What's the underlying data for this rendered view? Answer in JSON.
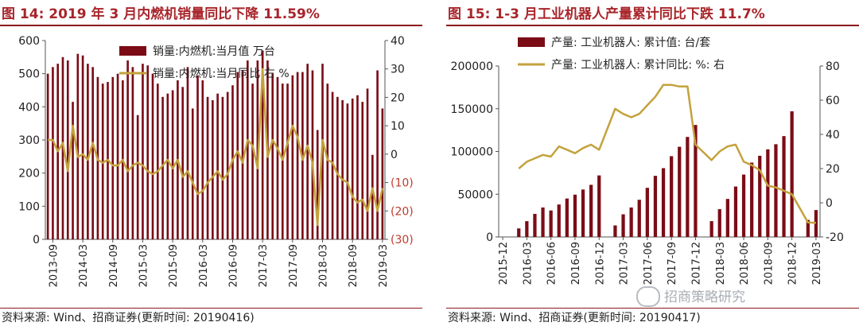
{
  "colors": {
    "bar": "#7b0c16",
    "line": "#c4a23c",
    "title": "#a8252b",
    "neg_tick": "#c0392b",
    "axis": "#555555"
  },
  "left": {
    "title": "图 14:  2019 年 3 月内燃机销量同比下降 11.59%",
    "source": "资料来源:   Wind、招商证券(更新时间: 20190416)",
    "legend_bar": "销量:内燃机:当月值 万台",
    "legend_line": "销量:内燃机:当月同比 右 %",
    "y_left_ticks": [
      "0",
      "100",
      "200",
      "300",
      "400",
      "500",
      "600"
    ],
    "y_right_ticks": [
      "(30)",
      "(20)",
      "(10)",
      "0",
      "10",
      "20",
      "30",
      "40"
    ],
    "x_ticks": [
      "2013-09",
      "2014-03",
      "2014-09",
      "2015-03",
      "2015-09",
      "2016-03",
      "2016-09",
      "2017-03",
      "2017-09",
      "2018-03",
      "2018-09",
      "2019-03"
    ]
  },
  "right": {
    "title": "图 15:  1-3 月工业机器人产量累计同比下跌 11.7%",
    "source": "资料来源:   Wind、招商证券(更新时间: 20190417)",
    "legend_bar": "产量: 工业机器人: 累计值: 台/套",
    "legend_line": "产量: 工业机器人: 累计同比: %: 右",
    "y_left_ticks": [
      "0",
      "50000",
      "100000",
      "150000",
      "200000"
    ],
    "y_right_ticks": [
      "-20",
      "0",
      "20",
      "40",
      "60",
      "80"
    ],
    "x_ticks": [
      "2015-12",
      "2016-03",
      "2016-06",
      "2016-09",
      "2016-12",
      "2017-03",
      "2017-06",
      "2017-09",
      "2017-12",
      "2018-03",
      "2018-06",
      "2018-09",
      "2018-12",
      "2019-03"
    ]
  },
  "watermark": "招商策略研究",
  "chart_data": [
    {
      "type": "bar",
      "title": "图 14:  2019 年 3 月内燃机销量同比下降 11.59%",
      "x_range": [
        "2013-08",
        "2019-03"
      ],
      "y_left_range": [
        0,
        600
      ],
      "y_right_range": [
        -30,
        40
      ],
      "legend_placement": "top-center",
      "series": [
        {
          "name": "销量:内燃机:当月值 万台",
          "type": "bar",
          "axis": "left",
          "x": [
            "2013-08",
            "2013-09",
            "2013-10",
            "2013-11",
            "2013-12",
            "2014-01",
            "2014-02",
            "2014-03",
            "2014-04",
            "2014-05",
            "2014-06",
            "2014-07",
            "2014-08",
            "2014-09",
            "2014-10",
            "2014-11",
            "2014-12",
            "2015-01",
            "2015-02",
            "2015-03",
            "2015-04",
            "2015-05",
            "2015-06",
            "2015-07",
            "2015-08",
            "2015-09",
            "2015-10",
            "2015-11",
            "2015-12",
            "2016-01",
            "2016-02",
            "2016-03",
            "2016-04",
            "2016-05",
            "2016-06",
            "2016-07",
            "2016-08",
            "2016-09",
            "2016-10",
            "2016-11",
            "2016-12",
            "2017-01",
            "2017-02",
            "2017-03",
            "2017-04",
            "2017-05",
            "2017-06",
            "2017-07",
            "2017-08",
            "2017-09",
            "2017-10",
            "2017-11",
            "2017-12",
            "2018-01",
            "2018-02",
            "2018-03",
            "2018-04",
            "2018-05",
            "2018-06",
            "2018-07",
            "2018-08",
            "2018-09",
            "2018-10",
            "2018-11",
            "2018-12",
            "2019-01",
            "2019-02",
            "2019-03"
          ],
          "values": [
            500,
            520,
            530,
            550,
            540,
            415,
            560,
            555,
            530,
            520,
            490,
            470,
            475,
            490,
            500,
            480,
            540,
            520,
            375,
            530,
            525,
            500,
            470,
            430,
            440,
            450,
            480,
            460,
            520,
            395,
            495,
            480,
            430,
            420,
            440,
            430,
            445,
            465,
            505,
            510,
            540,
            470,
            540,
            570,
            540,
            500,
            490,
            470,
            470,
            495,
            505,
            505,
            530,
            510,
            330,
            530,
            470,
            445,
            430,
            420,
            410,
            425,
            435,
            415,
            455,
            255,
            510,
            395
          ]
        },
        {
          "name": "销量:内燃机:当月同比 右 %",
          "type": "line",
          "axis": "right",
          "x": [
            "2013-08",
            "2013-09",
            "2013-10",
            "2013-11",
            "2013-12",
            "2014-01",
            "2014-02",
            "2014-03",
            "2014-04",
            "2014-05",
            "2014-06",
            "2014-07",
            "2014-08",
            "2014-09",
            "2014-10",
            "2014-11",
            "2014-12",
            "2015-01",
            "2015-02",
            "2015-03",
            "2015-04",
            "2015-05",
            "2015-06",
            "2015-07",
            "2015-08",
            "2015-09",
            "2015-10",
            "2015-11",
            "2015-12",
            "2016-01",
            "2016-02",
            "2016-03",
            "2016-04",
            "2016-05",
            "2016-06",
            "2016-07",
            "2016-08",
            "2016-09",
            "2016-10",
            "2016-11",
            "2016-12",
            "2017-01",
            "2017-02",
            "2017-03",
            "2017-04",
            "2017-05",
            "2017-06",
            "2017-07",
            "2017-08",
            "2017-09",
            "2017-10",
            "2017-11",
            "2017-12",
            "2018-01",
            "2018-02",
            "2018-03",
            "2018-04",
            "2018-05",
            "2018-06",
            "2018-07",
            "2018-08",
            "2018-09",
            "2018-10",
            "2018-11",
            "2018-12",
            "2019-01",
            "2019-02",
            "2019-03"
          ],
          "values": [
            5,
            5,
            1,
            4,
            -6,
            10,
            -1,
            0,
            -2,
            4,
            -2,
            -3,
            -2,
            -4,
            -4,
            -2,
            -6,
            -4,
            -3,
            -4,
            -6,
            -7,
            -6,
            -4,
            -2,
            -5,
            -2,
            -8,
            -6,
            -10,
            -14,
            -13,
            -10,
            -8,
            -6,
            -9,
            -7,
            -2,
            1,
            -3,
            5,
            3,
            -5,
            30,
            -1,
            5,
            2,
            -2,
            4,
            10,
            6,
            -2,
            3,
            -3,
            -25,
            5,
            -2,
            -3,
            -7,
            -9,
            -10,
            -15,
            -17,
            -16,
            -20,
            -12,
            -20,
            -12
          ]
        }
      ]
    },
    {
      "type": "bar",
      "title": "图 15:  1-3 月工业机器人产量累计同比下跌 11.7%",
      "x_range": [
        "2015-12",
        "2019-03"
      ],
      "y_left_range": [
        0,
        200000
      ],
      "y_right_range": [
        -20,
        80
      ],
      "legend_placement": "top-left",
      "series": [
        {
          "name": "产量: 工业机器人: 累计值: 台/套",
          "type": "bar",
          "axis": "left",
          "x": [
            "2016-02",
            "2016-03",
            "2016-04",
            "2016-05",
            "2016-06",
            "2016-07",
            "2016-08",
            "2016-09",
            "2016-10",
            "2016-11",
            "2016-12",
            "2017-02",
            "2017-03",
            "2017-04",
            "2017-05",
            "2017-06",
            "2017-07",
            "2017-08",
            "2017-09",
            "2017-10",
            "2017-11",
            "2017-12",
            "2018-02",
            "2018-03",
            "2018-04",
            "2018-05",
            "2018-06",
            "2018-07",
            "2018-08",
            "2018-09",
            "2018-10",
            "2018-11",
            "2018-12",
            "2019-02",
            "2019-03"
          ],
          "values": [
            10000,
            18500,
            27000,
            34500,
            31000,
            38000,
            45000,
            49500,
            55500,
            61000,
            72000,
            13500,
            26500,
            34500,
            43500,
            57500,
            71500,
            80500,
            94500,
            105500,
            117000,
            131000,
            18500,
            32500,
            44500,
            59000,
            73000,
            87000,
            95000,
            102500,
            108500,
            118000,
            147000,
            20000,
            31500
          ]
        },
        {
          "name": "产量: 工业机器人: 累计同比: %: 右",
          "type": "line",
          "axis": "right",
          "x": [
            "2016-02",
            "2016-03",
            "2016-04",
            "2016-05",
            "2016-06",
            "2016-07",
            "2016-08",
            "2016-09",
            "2016-10",
            "2016-11",
            "2016-12",
            "2017-02",
            "2017-03",
            "2017-04",
            "2017-05",
            "2017-06",
            "2017-07",
            "2017-08",
            "2017-09",
            "2017-10",
            "2017-11",
            "2017-12",
            "2018-02",
            "2018-03",
            "2018-04",
            "2018-05",
            "2018-06",
            "2018-07",
            "2018-08",
            "2018-09",
            "2018-10",
            "2018-11",
            "2018-12",
            "2019-02",
            "2019-03"
          ],
          "values": [
            20,
            24,
            26,
            28,
            27,
            33,
            31,
            29,
            32,
            34,
            31,
            55,
            52,
            50,
            52,
            57,
            62,
            69,
            69,
            68,
            68,
            34,
            25,
            30,
            33,
            34,
            24,
            22,
            19,
            10,
            9,
            7,
            5,
            -11.5,
            -11.7
          ]
        }
      ]
    }
  ]
}
